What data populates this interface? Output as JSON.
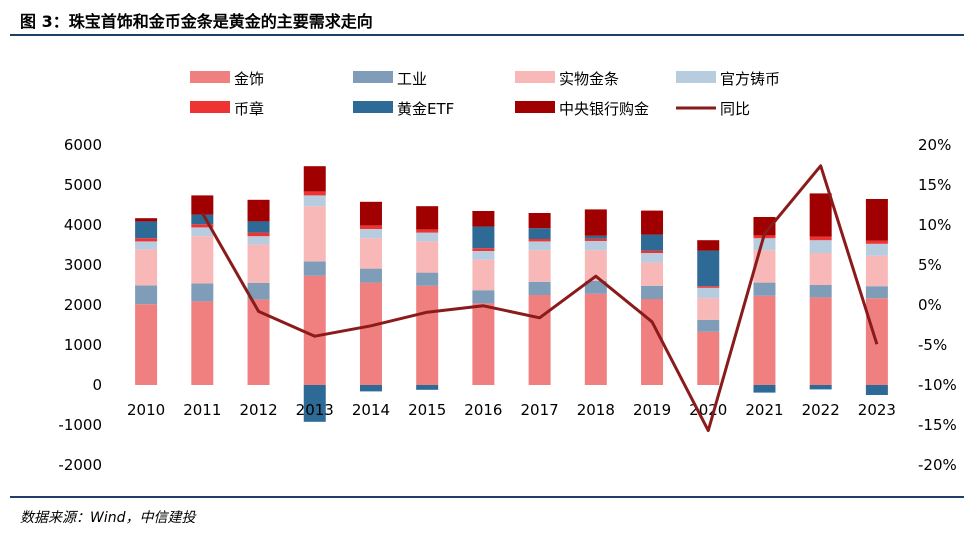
{
  "title": "图 3：珠宝首饰和金币金条是黄金的主要需求走向",
  "source": "数据来源：Wind，中信建投",
  "chart_data": {
    "type": "bar",
    "stacked": true,
    "categories": [
      "2010",
      "2011",
      "2012",
      "2013",
      "2014",
      "2015",
      "2016",
      "2017",
      "2018",
      "2019",
      "2020",
      "2021",
      "2022",
      "2023"
    ],
    "series": [
      {
        "name": "金饰",
        "color": "#f08080",
        "values": [
          2020,
          2090,
          2140,
          2730,
          2560,
          2480,
          2040,
          2250,
          2280,
          2150,
          1330,
          2230,
          2190,
          2170
        ]
      },
      {
        "name": "工业",
        "color": "#7f9db9",
        "values": [
          470,
          450,
          410,
          360,
          350,
          330,
          330,
          330,
          320,
          330,
          300,
          330,
          310,
          300
        ]
      },
      {
        "name": "实物金条",
        "color": "#f8b8b8",
        "values": [
          900,
          1180,
          960,
          1380,
          760,
          780,
          760,
          790,
          770,
          580,
          540,
          810,
          800,
          760
        ]
      },
      {
        "name": "官方铸币",
        "color": "#b8cce0",
        "values": [
          200,
          220,
          210,
          270,
          230,
          220,
          220,
          220,
          230,
          240,
          260,
          300,
          320,
          300
        ]
      },
      {
        "name": "币章",
        "color": "#ee3333",
        "values": [
          80,
          80,
          90,
          100,
          90,
          80,
          70,
          60,
          60,
          60,
          40,
          70,
          90,
          80
        ]
      },
      {
        "name": "黄金ETF",
        "color": "#2e6a96",
        "values": [
          420,
          240,
          280,
          -920,
          -160,
          -120,
          540,
          270,
          70,
          400,
          890,
          -190,
          -110,
          -250
        ]
      },
      {
        "name": "中央银行购金",
        "color": "#a00000",
        "values": [
          80,
          480,
          540,
          630,
          590,
          580,
          390,
          380,
          660,
          600,
          260,
          460,
          1080,
          1040
        ]
      }
    ],
    "line": {
      "name": "同比",
      "color": "#8b1a1a",
      "axis": "right",
      "values": [
        null,
        11.5,
        -0.8,
        -3.9,
        -2.6,
        -0.9,
        -0.1,
        -1.6,
        3.6,
        -2.1,
        -15.7,
        8.9,
        17.4,
        -4.9
      ]
    },
    "ylim_left": [
      -2000,
      6000
    ],
    "yticks_left": [
      "6000",
      "5000",
      "4000",
      "3000",
      "2000",
      "1000",
      "0",
      "-1000",
      "-2000"
    ],
    "ylim_right": [
      -20,
      20
    ],
    "yticks_right": [
      "20%",
      "15%",
      "10%",
      "5%",
      "0%",
      "-5%",
      "-10%",
      "-15%",
      "-20%"
    ],
    "grid": false,
    "legend_position": "top"
  }
}
